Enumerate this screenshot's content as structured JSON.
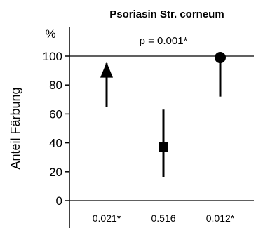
{
  "chart_data": {
    "type": "scatter",
    "title": "Psoriasin  Str. corneum",
    "ylabel": "Anteil Färbung",
    "yunit": "%",
    "ylim": [
      0,
      100
    ],
    "yticks": [
      0,
      20,
      40,
      60,
      80,
      100
    ],
    "grid": false,
    "reference_line": 100,
    "annotation": "p = 0.001*",
    "points": [
      {
        "marker": "triangle-up",
        "value": 90,
        "range": [
          65,
          95
        ],
        "pvalue": "0.021*"
      },
      {
        "marker": "square",
        "value": 37,
        "range": [
          16,
          63
        ],
        "pvalue": "0.516"
      },
      {
        "marker": "circle",
        "value": 99,
        "range": [
          72,
          99
        ],
        "pvalue": "0.012*"
      }
    ]
  }
}
